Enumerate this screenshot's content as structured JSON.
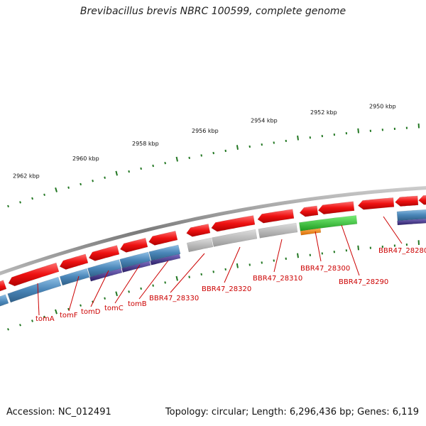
{
  "title": "Brevibacillus brevis NBRC 100599, complete genome",
  "footer": {
    "accession": "Accession: NC_012491",
    "summary": "Topology: circular; Length: 6,296,436 bp; Genes: 6,119"
  },
  "colors": {
    "gene_red": "#ee1111",
    "cds_blue": "#4a86b8",
    "operon_purple": "#4a3a8e",
    "pseudo_grey": "#b8b8b8",
    "gene_green": "#33bb33",
    "gene_orange": "#ee8811",
    "tick_green": "#227722",
    "label_red": "#cc0000",
    "backbone_grey": "#8c8c8c"
  },
  "scale_labels": [
    "2962 kbp",
    "2960 kbp",
    "2958 kbp",
    "2956 kbp",
    "2954 kbp",
    "2952 kbp",
    "2950 kbp"
  ],
  "gene_labels": [
    "tomA",
    "tomF",
    "tomD",
    "tomC",
    "tomB",
    "BBR47_28330",
    "BBR47_28320",
    "BBR47_28310",
    "BBR47_28300",
    "BBR47_28290",
    "BBR47_28280"
  ]
}
